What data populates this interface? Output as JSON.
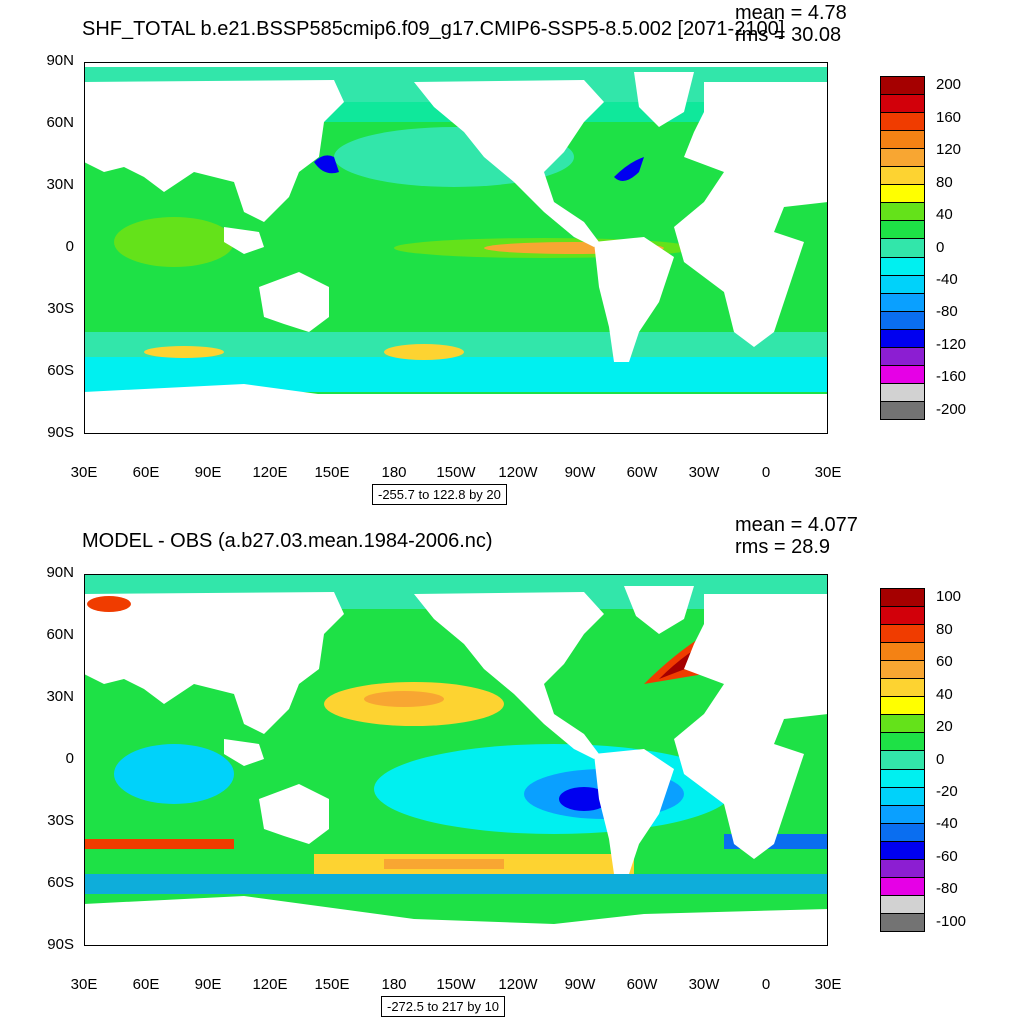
{
  "panels": [
    {
      "title": "SHF_TOTAL b.e21.BSSP585cmip6.f09_g17.CMIP6-SSP5-8.5.002 [2071-2100]",
      "mean": "mean = 4.78",
      "rms": "rms = 30.08",
      "range": "-255.7 to 122.8 by 20",
      "colorbar": {
        "labels": [
          "200",
          "160",
          "120",
          "80",
          "40",
          "0",
          "-40",
          "-80",
          "-120",
          "-160",
          "-200"
        ],
        "colors": [
          "#a50000",
          "#d2000a",
          "#f03c00",
          "#f48214",
          "#f8a632",
          "#fdd331",
          "#ffff00",
          "#64e21a",
          "#1ee146",
          "#32e6aa",
          "#00f0f0",
          "#00d2fa",
          "#0aa0ff",
          "#0a6ef0",
          "#0000f0",
          "#8c1ed2",
          "#e600e6",
          "#d2d2d2",
          "#737373"
        ]
      }
    },
    {
      "title": "MODEL - OBS (a.b27.03.mean.1984-2006.nc)",
      "mean": "mean = 4.077",
      "rms": "rms = 28.9",
      "range": "-272.5 to 217 by 10",
      "colorbar": {
        "labels": [
          "100",
          "80",
          "60",
          "40",
          "20",
          "0",
          "-20",
          "-40",
          "-60",
          "-80",
          "-100"
        ],
        "colors": [
          "#a50000",
          "#d2000a",
          "#f03c00",
          "#f48214",
          "#f8a632",
          "#fdd331",
          "#ffff00",
          "#64e21a",
          "#1ee146",
          "#32e6aa",
          "#00f0f0",
          "#00d2fa",
          "#0aa0ff",
          "#0a6ef0",
          "#0000f0",
          "#8c1ed2",
          "#e600e6",
          "#d2d2d2",
          "#737373"
        ]
      }
    }
  ],
  "axes": {
    "lat_labels": [
      "90N",
      "60N",
      "30N",
      "0",
      "30S",
      "60S",
      "90S"
    ],
    "lon_labels": [
      "30E",
      "60E",
      "90E",
      "120E",
      "150E",
      "180",
      "150W",
      "120W",
      "90W",
      "60W",
      "30W",
      "0",
      "30E"
    ]
  },
  "palette": {
    "ocean_base": "#1ee146",
    "ocean_cool": "#32e6aa",
    "ocean_cyan": "#00f0f0",
    "ocean_warm": "#64e21a",
    "ocean_blue": "#00d2fa",
    "land": "#ffffff"
  }
}
